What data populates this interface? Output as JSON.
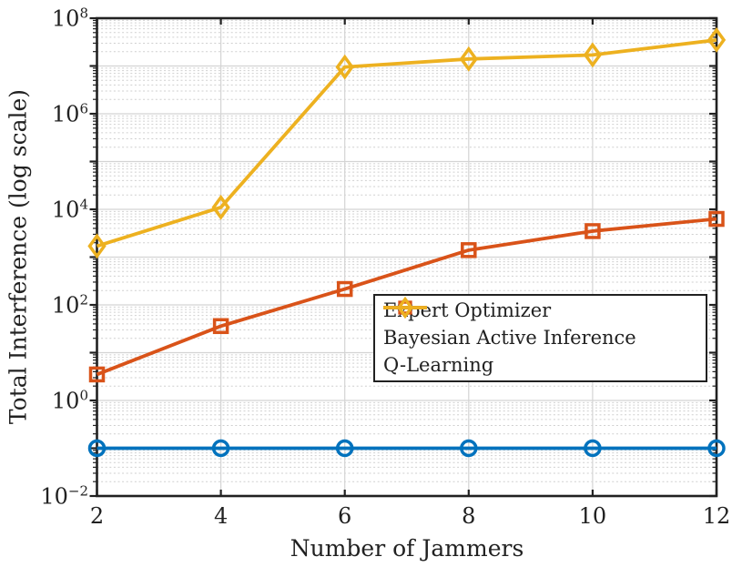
{
  "figure": {
    "background": "#ffffff",
    "text_color": "#212121",
    "grid_major_color": "#d4d4d4",
    "grid_minor_color": "#cfcfcf",
    "axis_color": "#212121"
  },
  "chart_data": {
    "type": "line",
    "title": "",
    "xlabel": "Number of Jammers",
    "ylabel": "Total Interference (log scale)",
    "y_scale": "log10",
    "xlim": [
      2,
      12
    ],
    "ylim_exponents": [
      -2,
      8
    ],
    "x_ticks": [
      2,
      4,
      6,
      8,
      10,
      12
    ],
    "y_tick_exponents": [
      -2,
      0,
      2,
      4,
      6,
      8
    ],
    "grid": "major solid every decade, minor dotted at log positions",
    "legend_position": "middle-right",
    "x": [
      2,
      4,
      6,
      8,
      10,
      12
    ],
    "series": [
      {
        "name": "Expert Optimizer",
        "color": "#0072BD",
        "marker": "circle",
        "values": [
          0.1,
          0.1,
          0.1,
          0.1,
          0.1,
          0.1
        ]
      },
      {
        "name": "Bayesian Active Inference",
        "color": "#D95319",
        "marker": "square",
        "values": [
          3.5,
          36,
          215,
          1400,
          3500,
          6300
        ]
      },
      {
        "name": "Q-Learning",
        "color": "#EDB120",
        "marker": "diamond",
        "values": [
          1700,
          11000,
          9500000,
          14000000,
          17000000,
          35000000
        ]
      }
    ]
  }
}
